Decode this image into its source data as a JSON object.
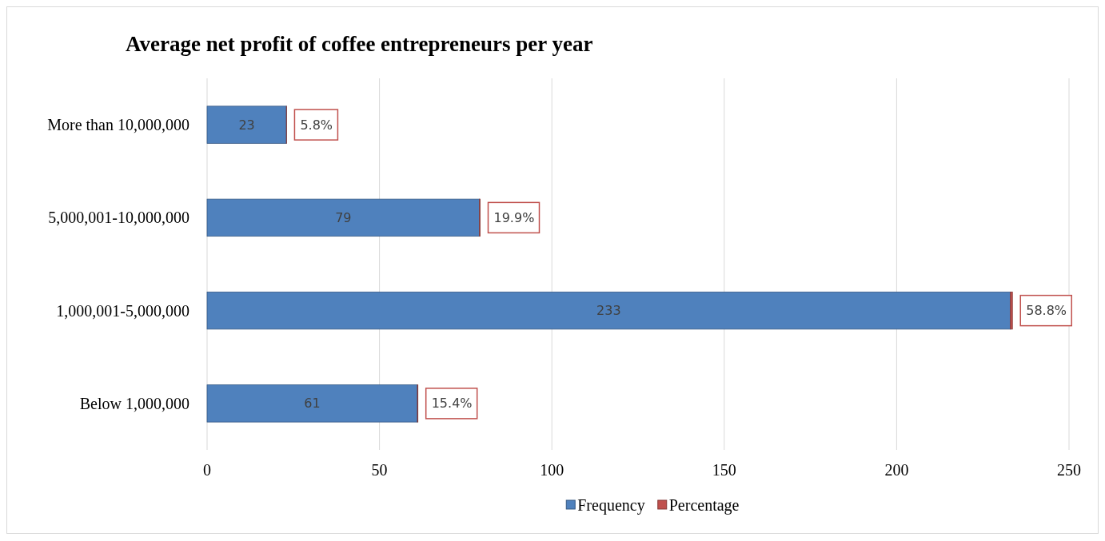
{
  "chart_data": {
    "type": "bar",
    "orientation": "horizontal",
    "stacked": true,
    "title": "Average net profit of coffee entrepreneurs per year",
    "categories": [
      "More than 10,000,000",
      "5,000,001-10,000,000",
      "1,000,001-5,000,000",
      "Below 1,000,000"
    ],
    "series": [
      {
        "name": "Frequency",
        "color": "#4f81bd",
        "values": [
          23,
          79,
          233,
          61
        ],
        "value_labels": [
          "23",
          "79",
          "233",
          "61"
        ]
      },
      {
        "name": "Percentage",
        "color": "#c0504d",
        "values": [
          0.058,
          0.199,
          0.588,
          0.154
        ],
        "value_labels": [
          "5.8%",
          "19.9%",
          "58.8%",
          "15.4%"
        ]
      }
    ],
    "xlim": [
      0,
      250
    ],
    "xticks": [
      0,
      50,
      100,
      150,
      200,
      250
    ],
    "grid": "x",
    "legend": "bottom"
  }
}
